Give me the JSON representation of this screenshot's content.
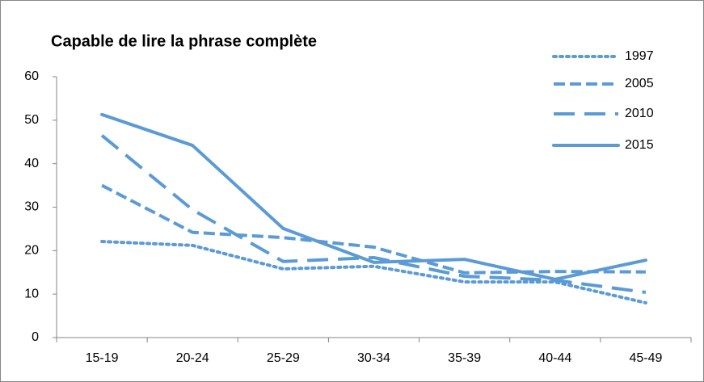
{
  "chart_data": {
    "type": "line",
    "title": "Capable de lire la phrase complète",
    "categories": [
      "15-19",
      "20-24",
      "25-29",
      "30-34",
      "35-39",
      "40-44",
      "45-49"
    ],
    "series": [
      {
        "name": "1997",
        "color": "#5b9bd5",
        "dash": "dotted",
        "values": [
          22.1,
          21.2,
          15.8,
          16.4,
          12.8,
          12.8,
          8.0
        ]
      },
      {
        "name": "2005",
        "color": "#5b9bd5",
        "dash": "dashed",
        "values": [
          35.0,
          24.2,
          23.0,
          20.8,
          14.9,
          15.2,
          15.1
        ]
      },
      {
        "name": "2010",
        "color": "#5b9bd5",
        "dash": "long-dashed",
        "values": [
          46.5,
          29.4,
          17.5,
          18.4,
          14.1,
          13.2,
          10.4
        ]
      },
      {
        "name": "2015",
        "color": "#5b9bd5",
        "dash": "solid",
        "values": [
          51.3,
          44.2,
          25.1,
          17.3,
          18.0,
          13.4,
          17.8
        ]
      }
    ],
    "ylim": [
      0,
      60
    ],
    "yticks": [
      0,
      10,
      20,
      30,
      40,
      50,
      60
    ],
    "grid": false,
    "legend": "top-right"
  }
}
